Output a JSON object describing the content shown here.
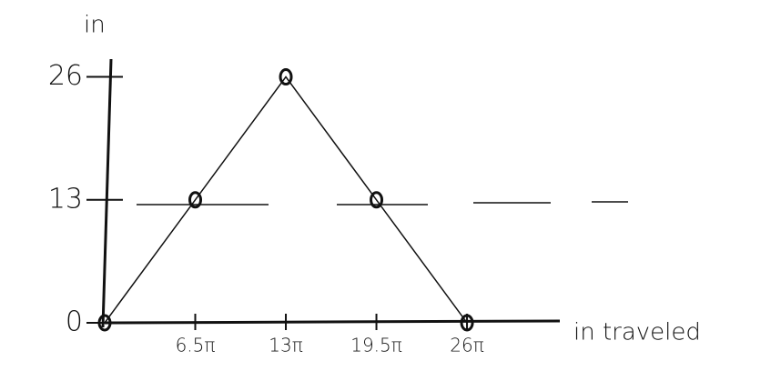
{
  "chart_data": {
    "type": "line",
    "x_label": "in traveled",
    "y_label": "in",
    "x": [
      0,
      20.42,
      40.84,
      61.26,
      81.68
    ],
    "series": [
      {
        "color": "#111111",
        "values": [
          0,
          13,
          26,
          13,
          0
        ]
      }
    ],
    "xlim": [
      0,
      102.6
    ],
    "ylim": [
      0,
      27.4
    ],
    "xticks": [
      {
        "value": 20.42,
        "label": "6.5π"
      },
      {
        "value": 40.84,
        "label": "13π"
      },
      {
        "value": 61.26,
        "label": "19.5π"
      },
      {
        "value": 81.68,
        "label": "26π"
      }
    ],
    "yticks": [
      0,
      13,
      26
    ]
  }
}
